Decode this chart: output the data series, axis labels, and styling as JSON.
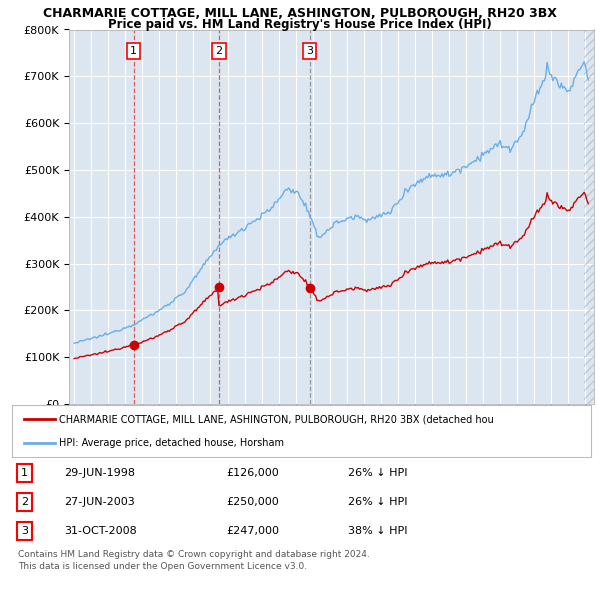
{
  "title1": "CHARMARIE COTTAGE, MILL LANE, ASHINGTON, PULBOROUGH, RH20 3BX",
  "title2": "Price paid vs. HM Land Registry's House Price Index (HPI)",
  "legend_line1": "CHARMARIE COTTAGE, MILL LANE, ASHINGTON, PULBOROUGH, RH20 3BX (detached hou",
  "legend_line2": "HPI: Average price, detached house, Horsham",
  "footnote1": "Contains HM Land Registry data © Crown copyright and database right 2024.",
  "footnote2": "This data is licensed under the Open Government Licence v3.0.",
  "sales": [
    {
      "num": 1,
      "date": "29-JUN-1998",
      "price": 126000,
      "pct": "26%",
      "dir": "↓"
    },
    {
      "num": 2,
      "date": "27-JUN-2003",
      "price": 250000,
      "pct": "26%",
      "dir": "↓"
    },
    {
      "num": 3,
      "date": "31-OCT-2008",
      "price": 247000,
      "pct": "38%",
      "dir": "↓"
    }
  ],
  "sale_dates_decimal": [
    1998.49,
    2003.49,
    2008.83
  ],
  "sale_prices": [
    126000,
    250000,
    247000
  ],
  "ylim": [
    0,
    800000
  ],
  "yticks": [
    0,
    100000,
    200000,
    300000,
    400000,
    500000,
    600000,
    700000,
    800000
  ],
  "xlim_start": 1994.7,
  "xlim_end": 2025.5,
  "hpi_color": "#6aaee8",
  "price_color": "#cc0000",
  "vline_color_red": "#dd4444",
  "vline_color_grey": "#888888",
  "bg_plot": "#dce6f1",
  "bg_fig": "#ffffff",
  "grid_color": "#ffffff"
}
